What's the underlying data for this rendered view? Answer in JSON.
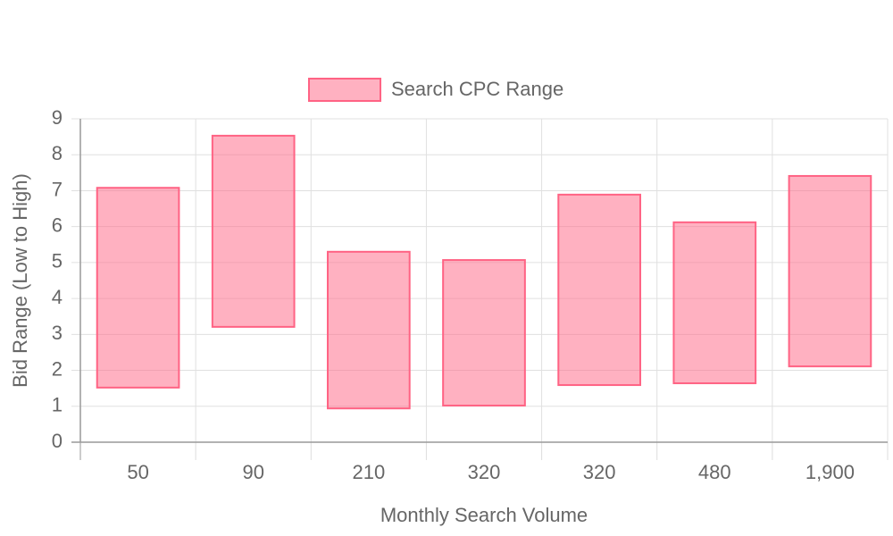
{
  "chart_data": {
    "type": "range-bar",
    "xlabel": "Monthly Search Volume",
    "ylabel": "Bid Range (Low to High)",
    "categories": [
      "50",
      "90",
      "210",
      "320",
      "320",
      "480",
      "1,900"
    ],
    "series": [
      {
        "name": "Search CPC Range",
        "color": "#ff6384",
        "values": [
          [
            1.52,
            7.08
          ],
          [
            3.21,
            8.53
          ],
          [
            0.94,
            5.3
          ],
          [
            1.02,
            5.07
          ],
          [
            1.59,
            6.89
          ],
          [
            1.64,
            6.12
          ],
          [
            2.11,
            7.41
          ]
        ]
      }
    ],
    "ylim": [
      0,
      9
    ],
    "yticks": [
      0,
      1,
      2,
      3,
      4,
      5,
      6,
      7,
      8,
      9
    ],
    "grid": true,
    "legend": "top"
  }
}
